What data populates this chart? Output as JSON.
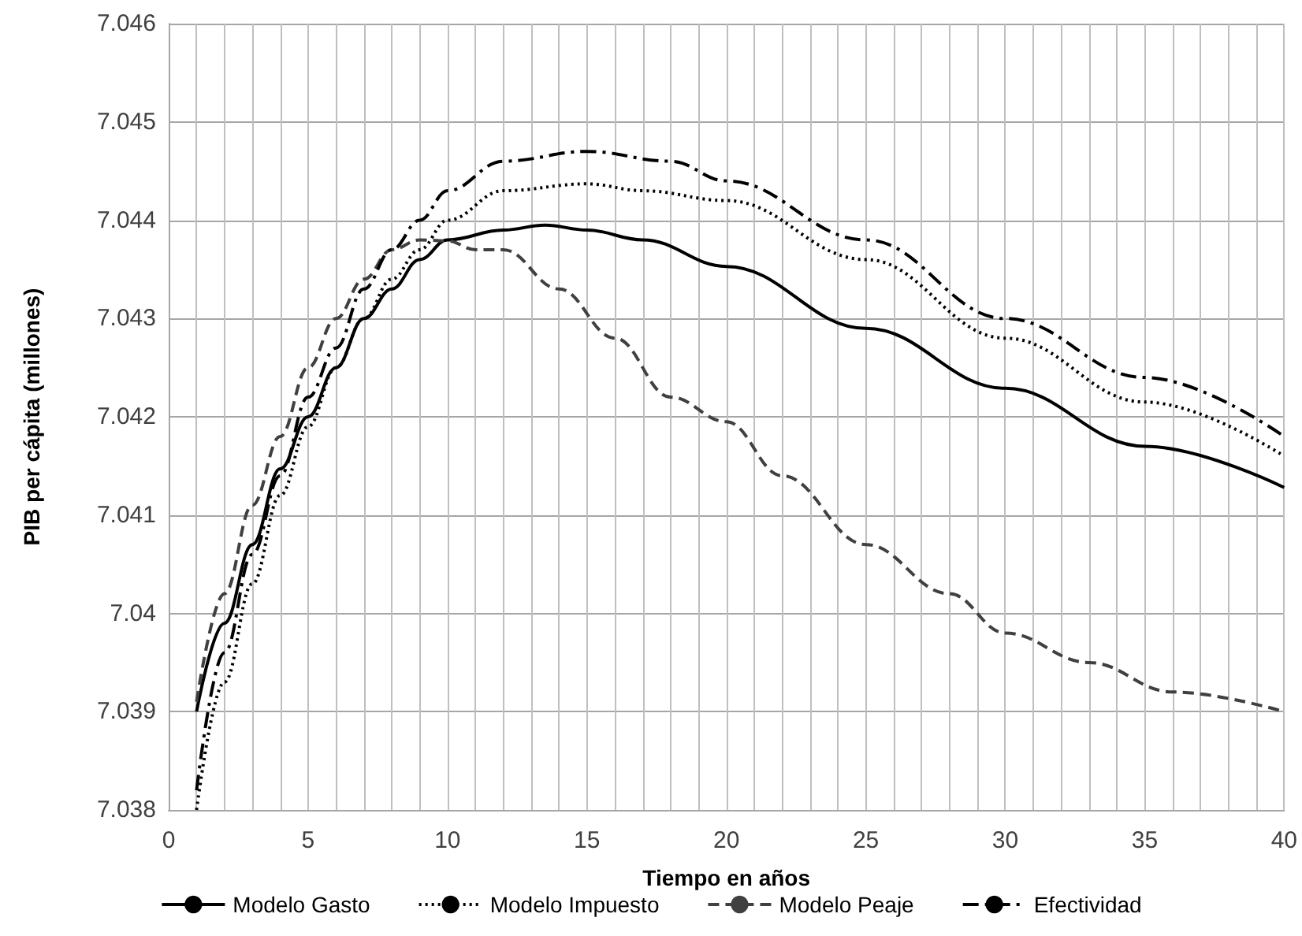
{
  "chart_data": {
    "type": "line",
    "xlabel": "Tiempo en años",
    "ylabel": "PIB per cápita (millones)",
    "xlim": [
      0,
      40
    ],
    "ylim": [
      7.038,
      7.046
    ],
    "xticks": [
      0,
      {
        "value": 1,
        "label": null
      },
      {
        "value": 2,
        "label": null
      },
      {
        "value": 3,
        "label": null
      },
      {
        "value": 4,
        "label": null
      },
      5,
      {
        "value": 6,
        "label": null
      },
      {
        "value": 7,
        "label": null
      },
      {
        "value": 8,
        "label": null
      },
      {
        "value": 9,
        "label": null
      },
      10,
      {
        "value": 11,
        "label": null
      },
      {
        "value": 12,
        "label": null
      },
      {
        "value": 13,
        "label": null
      },
      {
        "value": 14,
        "label": null
      },
      15,
      {
        "value": 16,
        "label": null
      },
      {
        "value": 17,
        "label": null
      },
      {
        "value": 18,
        "label": null
      },
      {
        "value": 19,
        "label": null
      },
      20,
      {
        "value": 21,
        "label": null
      },
      {
        "value": 22,
        "label": null
      },
      {
        "value": 23,
        "label": null
      },
      {
        "value": 24,
        "label": null
      },
      25,
      {
        "value": 26,
        "label": null
      },
      {
        "value": 27,
        "label": null
      },
      {
        "value": 28,
        "label": null
      },
      {
        "value": 29,
        "label": null
      },
      30,
      {
        "value": 31,
        "label": null
      },
      {
        "value": 32,
        "label": null
      },
      {
        "value": 33,
        "label": null
      },
      {
        "value": 34,
        "label": null
      },
      35,
      {
        "value": 36,
        "label": null
      },
      {
        "value": 37,
        "label": null
      },
      {
        "value": 38,
        "label": null
      },
      {
        "value": 39,
        "label": null
      },
      40
    ],
    "yticks": [
      7.038,
      7.039,
      7.04,
      7.041,
      7.042,
      7.043,
      7.044,
      7.045,
      7.046
    ],
    "grid": true,
    "legend": "bottom",
    "marker": "none",
    "series": [
      {
        "name": "Modelo Gasto",
        "color": "#000000",
        "line_style": "solid",
        "x": [
          1,
          2,
          3,
          4,
          5,
          6,
          7,
          8,
          9,
          10,
          12,
          13.5,
          15,
          17,
          20,
          25,
          30,
          35,
          40
        ],
        "values": [
          7.039,
          7.0399,
          7.0407,
          7.04147,
          7.042,
          7.0425,
          7.043,
          7.0433,
          7.0436,
          7.0438,
          7.0439,
          7.04395,
          7.0439,
          7.0438,
          7.04353,
          7.0429,
          7.04229,
          7.0417,
          7.04128
        ]
      },
      {
        "name": "Modelo Impuesto",
        "color": "#000000",
        "line_style": "dotted",
        "x": [
          1,
          2,
          3,
          4,
          5,
          6,
          7,
          8,
          9,
          10,
          12,
          15,
          17,
          20,
          25,
          30,
          35,
          40
        ],
        "values": [
          7.038,
          7.0393,
          7.0403,
          7.0412,
          7.0419,
          7.0425,
          7.043,
          7.0434,
          7.0437,
          7.044,
          7.0443,
          7.04437,
          7.0443,
          7.0442,
          7.0436,
          7.0428,
          7.04215,
          7.0416
        ]
      },
      {
        "name": "Modelo Peaje",
        "color": "#404040",
        "line_style": "dashed",
        "x": [
          1,
          2,
          3,
          4,
          5,
          6,
          7,
          8,
          9,
          10,
          11,
          12,
          14,
          16,
          18,
          20,
          22,
          25,
          28,
          30,
          33,
          36,
          40
        ],
        "values": [
          7.0391,
          7.0402,
          7.0411,
          7.0418,
          7.0425,
          7.043,
          7.0434,
          7.0437,
          7.0438,
          7.04379,
          7.0437,
          7.0437,
          7.0433,
          7.0428,
          7.0422,
          7.04195,
          7.0414,
          7.0407,
          7.0402,
          7.0398,
          7.0395,
          7.0392,
          7.039
        ]
      },
      {
        "name": "Efectividad",
        "color": "#000000",
        "line_style": "dashdot",
        "x": [
          1,
          2,
          3,
          4,
          5,
          6,
          7,
          8,
          9,
          10,
          12,
          15,
          18,
          20,
          25,
          30,
          35,
          40
        ],
        "values": [
          7.0382,
          7.0396,
          7.0406,
          7.0414,
          7.0422,
          7.0427,
          7.0433,
          7.0437,
          7.044,
          7.0443,
          7.0446,
          7.0447,
          7.0446,
          7.0444,
          7.0438,
          7.043,
          7.0424,
          7.0418
        ]
      }
    ]
  }
}
